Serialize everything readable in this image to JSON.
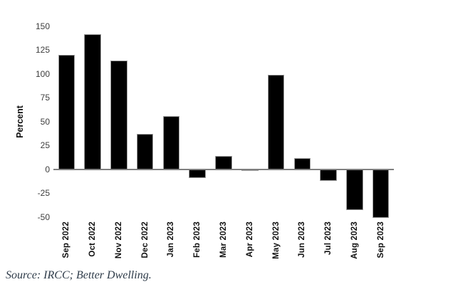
{
  "chart_data": {
    "type": "bar",
    "title": "",
    "xlabel": "",
    "ylabel": "Percent",
    "categories": [
      "Sep 2022",
      "Oct 2022",
      "Nov 2022",
      "Dec 2022",
      "Jan 2023",
      "Feb 2023",
      "Mar 2023",
      "Apr 2023",
      "May 2023",
      "Jun 2023",
      "Jul 2023",
      "Aug 2023",
      "Sep 2023"
    ],
    "values": [
      120,
      142,
      114,
      37,
      56,
      -9,
      14,
      -1,
      99,
      12,
      -12,
      -43,
      -51
    ],
    "ylim": [
      -50,
      150
    ],
    "yticks": [
      150,
      125,
      100,
      75,
      50,
      25,
      0,
      -25,
      -50
    ],
    "grid": false,
    "legend_position": "none",
    "bar_color": "#000000",
    "bar_edge_color": "#9e9e9e",
    "zero_line_color": "#7f7f7f",
    "ytick_color": "#3d3d3d",
    "xtick_color": "#111111"
  },
  "footer": {
    "source_text": "Source: IRCC; Better Dwelling.",
    "color": "#2e3b49"
  }
}
